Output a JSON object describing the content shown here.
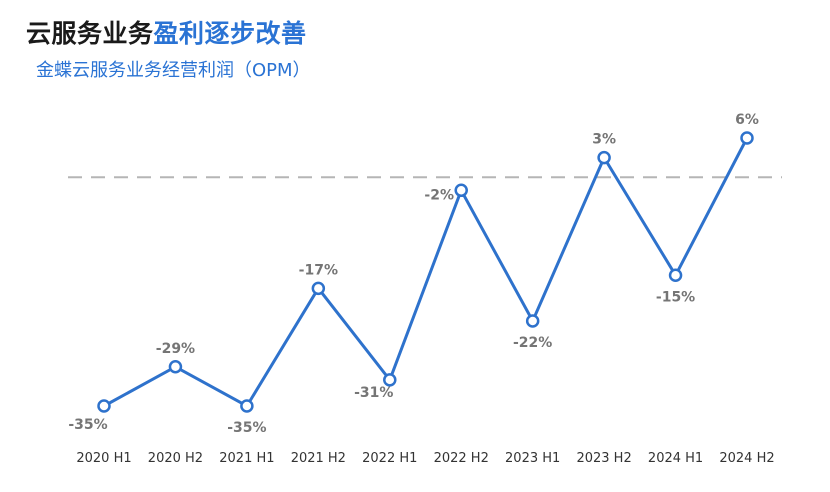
{
  "header": {
    "title_dark": "云服务业务",
    "title_accent": "盈利逐步改善",
    "subtitle": "金蝶云服务业务经营利润（OPM）"
  },
  "colors": {
    "line": "#2e72cc",
    "title_accent": "#2a73d4",
    "label": "#757575",
    "reference_line": "#b5b5b5"
  },
  "chart_data": {
    "type": "line",
    "categories": [
      "2020 H1",
      "2020 H2",
      "2021 H1",
      "2021 H2",
      "2022 H1",
      "2022 H2",
      "2023 H1",
      "2023 H2",
      "2024 H1",
      "2024 H2"
    ],
    "values": [
      -35,
      -29,
      -35,
      -17,
      -31,
      -2,
      -22,
      3,
      -15,
      6
    ],
    "data_labels": [
      "-35%",
      "-29%",
      "-35%",
      "-17%",
      "-31%",
      "-2%",
      "-22%",
      "3%",
      "-15%",
      "6%"
    ],
    "reference_line": {
      "value": 0,
      "style": "dashed"
    },
    "marker": "hollow-circle",
    "y_axis_visible": false,
    "grid": false,
    "legend": "none"
  }
}
